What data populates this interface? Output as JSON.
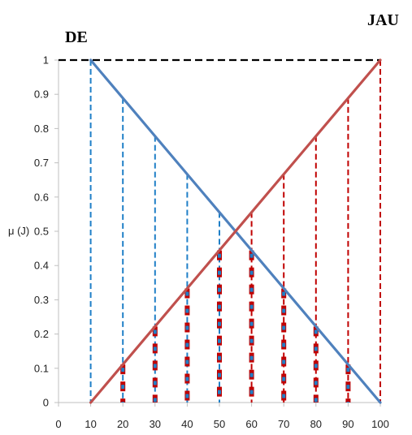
{
  "chart_data": {
    "type": "line",
    "xlabel": "",
    "ylabel": "μ (J)",
    "xlim": [
      0,
      100
    ],
    "ylim": [
      0,
      1
    ],
    "x_ticks": [
      "0",
      "10",
      "20",
      "30",
      "40",
      "50",
      "60",
      "70",
      "80",
      "90",
      "100"
    ],
    "y_ticks": [
      "0",
      "0.1",
      "0.2",
      "0.3",
      "0.4",
      "0.5",
      "0.6",
      "0.7",
      "0.8",
      "0.9",
      "1"
    ],
    "grid": false,
    "annotations": [
      {
        "text": "DE"
      },
      {
        "text": "JAU"
      }
    ],
    "colors": {
      "de": "#4f81bd",
      "jau": "#c0504d",
      "de_dashed": "#1f7fc7",
      "jau_dashed": "#c00000",
      "top_dashed": "#000000"
    },
    "series": [
      {
        "name": "DE",
        "x": [
          10,
          100
        ],
        "y": [
          1,
          0
        ]
      },
      {
        "name": "JAU",
        "x": [
          10,
          100
        ],
        "y": [
          0,
          1
        ]
      }
    ],
    "de_drops": [
      {
        "x": 10,
        "y": 1.0
      },
      {
        "x": 20,
        "y": 0.889
      },
      {
        "x": 30,
        "y": 0.778
      },
      {
        "x": 40,
        "y": 0.667
      },
      {
        "x": 50,
        "y": 0.556
      }
    ],
    "jau_drops": [
      {
        "x": 60,
        "y": 0.556
      },
      {
        "x": 70,
        "y": 0.667
      },
      {
        "x": 80,
        "y": 0.778
      },
      {
        "x": 90,
        "y": 0.889
      },
      {
        "x": 100,
        "y": 1.0
      }
    ],
    "bold_columns": [
      {
        "x": 20,
        "y": 0.111
      },
      {
        "x": 30,
        "y": 0.222
      },
      {
        "x": 40,
        "y": 0.333
      },
      {
        "x": 50,
        "y": 0.444
      },
      {
        "x": 60,
        "y": 0.444
      },
      {
        "x": 70,
        "y": 0.333
      },
      {
        "x": 80,
        "y": 0.222
      },
      {
        "x": 90,
        "y": 0.111
      }
    ],
    "top_line": {
      "x1": 0,
      "x2": 100,
      "y": 1
    }
  }
}
